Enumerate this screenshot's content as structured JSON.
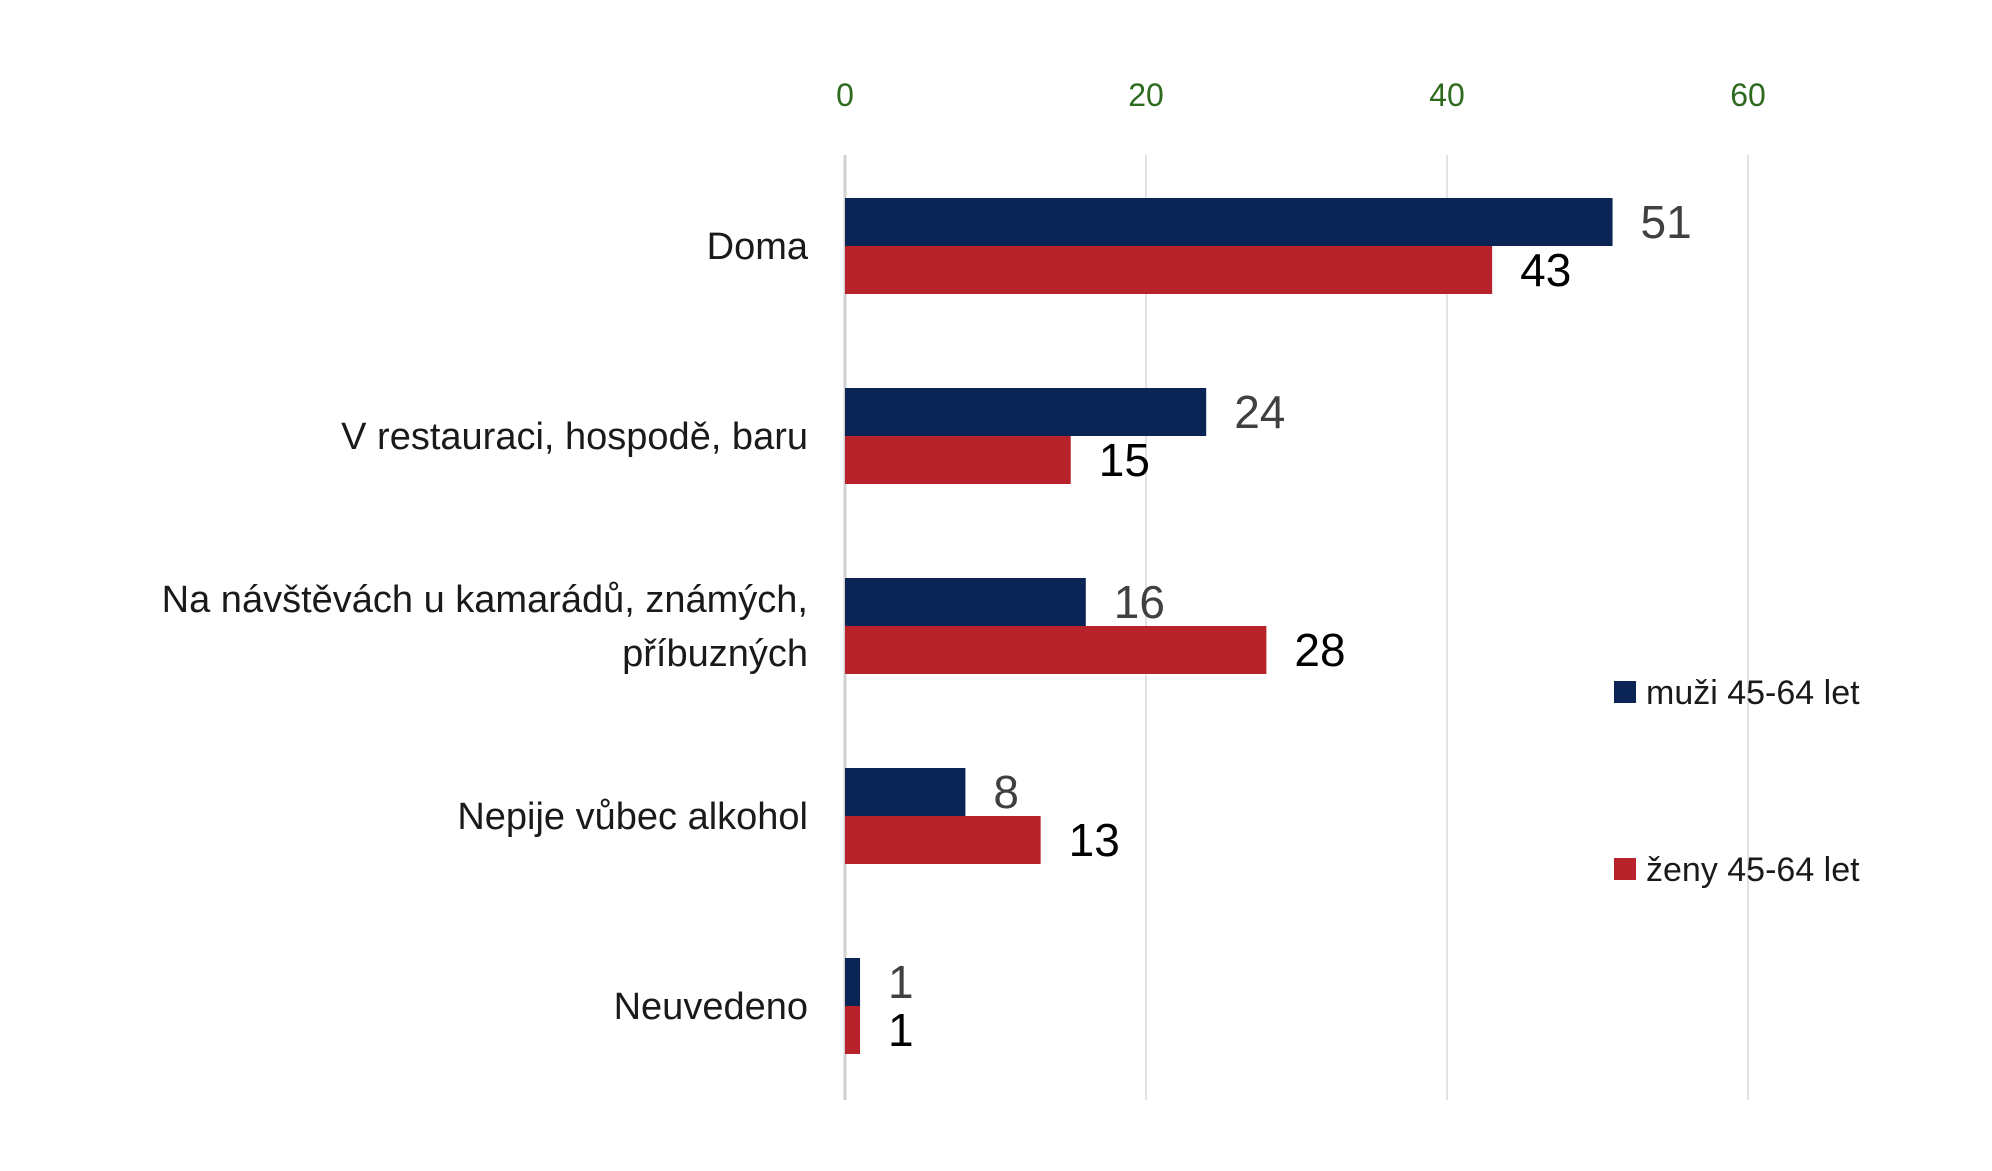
{
  "chart_data": {
    "type": "bar",
    "orientation": "horizontal",
    "categories": [
      [
        "Doma"
      ],
      [
        "V restauraci, hospodě, baru"
      ],
      [
        "Na návštěvách u kamarádů, známých,",
        "příbuzných"
      ],
      [
        "Nepije vůbec alkohol"
      ],
      [
        "Neuvedeno"
      ]
    ],
    "series": [
      {
        "name": "muži 45-64 let",
        "color": "#0b2456",
        "values": [
          51,
          24,
          16,
          8,
          1
        ]
      },
      {
        "name": "ženy 45-64 let",
        "color": "#b8232b",
        "values": [
          43,
          15,
          28,
          13,
          1
        ]
      }
    ],
    "xlim": [
      0,
      60
    ],
    "xticks": [
      "0",
      "20",
      "40",
      "60"
    ],
    "axis_position": "top",
    "grid": true,
    "legend_position": "right"
  }
}
